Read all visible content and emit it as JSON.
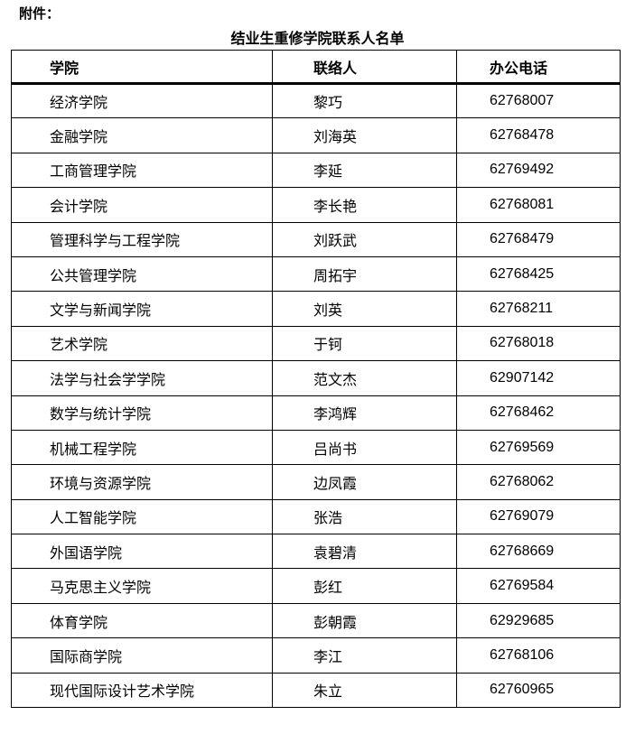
{
  "attachment_label": "附件：",
  "title": "结业生重修学院联系人名单",
  "table": {
    "headers": [
      "学院",
      "联络人",
      "办公电话"
    ],
    "rows": [
      [
        "经济学院",
        "黎巧",
        "62768007"
      ],
      [
        "金融学院",
        "刘海英",
        "62768478"
      ],
      [
        "工商管理学院",
        "李延",
        "62769492"
      ],
      [
        "会计学院",
        "李长艳",
        "62768081"
      ],
      [
        "管理科学与工程学院",
        "刘跃武",
        "62768479"
      ],
      [
        "公共管理学院",
        "周拓宇",
        "62768425"
      ],
      [
        "文学与新闻学院",
        "刘英",
        "62768211"
      ],
      [
        "艺术学院",
        "于钶",
        "62768018"
      ],
      [
        "法学与社会学学院",
        "范文杰",
        "62907142"
      ],
      [
        "数学与统计学院",
        "李鸿辉",
        "62768462"
      ],
      [
        "机械工程学院",
        "吕尚书",
        "62769569"
      ],
      [
        "环境与资源学院",
        "边凤霞",
        "62768062"
      ],
      [
        "人工智能学院",
        "张浩",
        "62769079"
      ],
      [
        "外国语学院",
        "袁碧清",
        "62768669"
      ],
      [
        "马克思主义学院",
        "彭红",
        "62769584"
      ],
      [
        "体育学院",
        "彭朝霞",
        "62929685"
      ],
      [
        "国际商学院",
        "李江",
        "62768106"
      ],
      [
        "现代国际设计艺术学院",
        "朱立",
        "62760965"
      ]
    ]
  }
}
